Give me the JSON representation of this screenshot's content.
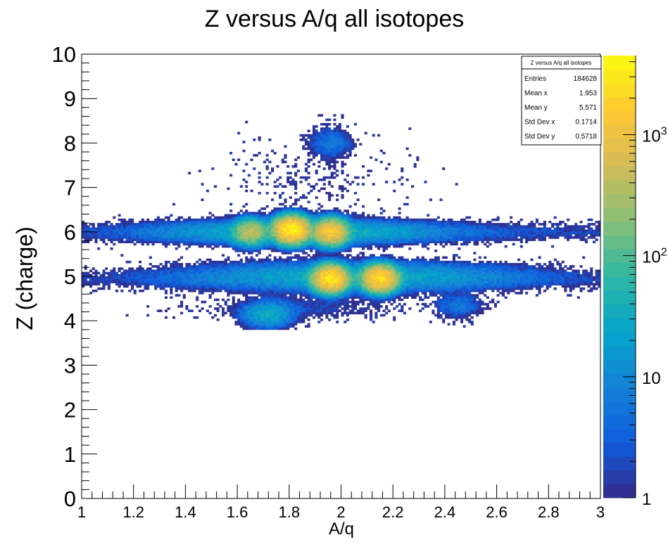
{
  "chart_data": {
    "type": "heatmap",
    "title": "Z versus A/q all isotopes",
    "xlabel": "A/q",
    "ylabel": "Z (charge)",
    "xlim": [
      1,
      3
    ],
    "ylim": [
      0,
      10
    ],
    "x_ticks": [
      "1",
      "1.2",
      "1.4",
      "1.6",
      "1.8",
      "2",
      "2.2",
      "2.4",
      "2.6",
      "2.8",
      "3"
    ],
    "y_ticks": [
      "0",
      "1",
      "2",
      "3",
      "4",
      "5",
      "6",
      "7",
      "8",
      "9",
      "10"
    ],
    "color_scale": "log",
    "zlim": [
      1,
      4500
    ],
    "color_ticks": [
      {
        "value": 1,
        "label": "1"
      },
      {
        "value": 10,
        "label": "10"
      },
      {
        "value": 100,
        "label": "10",
        "sup": "2"
      },
      {
        "value": 1000,
        "label": "10",
        "sup": "3"
      }
    ],
    "palette": [
      "#352a87",
      "#0f5cdd",
      "#1481d6",
      "#06a4ca",
      "#2eb7a4",
      "#87bf77",
      "#d1bb59",
      "#fec832",
      "#f9fb0e"
    ],
    "clusters": [
      {
        "x": 1.65,
        "y": 6.0,
        "peak": 450
      },
      {
        "x": 1.81,
        "y": 6.05,
        "peak": 3500
      },
      {
        "x": 1.96,
        "y": 6.0,
        "peak": 1500
      },
      {
        "x": 1.96,
        "y": 4.95,
        "peak": 3000
      },
      {
        "x": 2.15,
        "y": 4.95,
        "peak": 2500
      },
      {
        "x": 1.72,
        "y": 4.15,
        "peak": 30
      },
      {
        "x": 1.96,
        "y": 8.0,
        "peak": 4
      },
      {
        "x": 2.45,
        "y": 4.35,
        "peak": 6
      }
    ],
    "stats": {
      "title": "Z versus A/q all isotopes",
      "rows": [
        {
          "label": "Entries",
          "value": "184628"
        },
        {
          "label": "Mean x",
          "value": "1.953"
        },
        {
          "label": "Mean y",
          "value": "5.571"
        },
        {
          "label": "Std Dev x",
          "value": "0.1714"
        },
        {
          "label": "Std Dev y",
          "value": "0.5718"
        }
      ]
    }
  }
}
